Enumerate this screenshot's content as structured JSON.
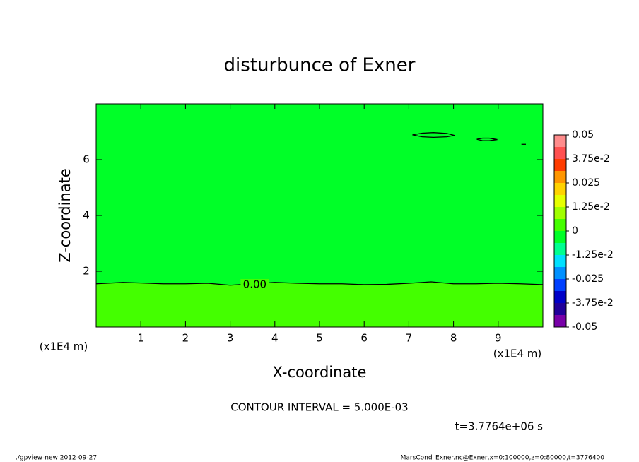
{
  "chart_data": {
    "type": "contour",
    "title": "disturbunce of Exner",
    "xlabel": "X-coordinate",
    "ylabel": "Z-coordinate",
    "xunit": "(x1E4 m)",
    "yunit": "(x1E4 m)",
    "xlim": [
      0,
      10
    ],
    "ylim": [
      0,
      8
    ],
    "xticks": [
      1,
      2,
      3,
      4,
      5,
      6,
      7,
      8,
      9
    ],
    "yticks": [
      2,
      4,
      6
    ],
    "background_color": "#00ff28",
    "contours": [
      {
        "label": "0.00",
        "label_at": [
          3.55,
          1.52
        ],
        "fill_below": "#44ff00",
        "x": [
          0,
          0.6,
          1,
          1.5,
          2,
          2.5,
          3,
          3.5,
          4,
          4.5,
          5,
          5.5,
          6,
          6.5,
          7,
          7.5,
          8,
          8.5,
          9,
          9.5,
          10
        ],
        "z": [
          1.55,
          1.6,
          1.58,
          1.55,
          1.55,
          1.57,
          1.5,
          1.55,
          1.6,
          1.57,
          1.55,
          1.55,
          1.52,
          1.53,
          1.57,
          1.62,
          1.55,
          1.55,
          1.57,
          1.55,
          1.52
        ]
      },
      {
        "x": [
          7.08,
          7.3,
          7.55,
          7.85,
          8.02,
          7.85,
          7.55,
          7.3,
          7.08
        ],
        "z": [
          6.89,
          6.95,
          6.97,
          6.94,
          6.87,
          6.82,
          6.8,
          6.82,
          6.89
        ]
      },
      {
        "x": [
          8.52,
          8.65,
          8.8,
          8.98,
          8.8,
          8.65,
          8.52
        ],
        "z": [
          6.73,
          6.77,
          6.77,
          6.72,
          6.68,
          6.68,
          6.73
        ]
      },
      {
        "x": [
          9.52,
          9.62
        ],
        "z": [
          6.55,
          6.55
        ]
      }
    ],
    "colorbar": {
      "lim": [
        -0.05,
        0.05
      ],
      "ticks": [
        -0.05,
        {
          "value": -0.0375,
          "label": "-3.75e-2"
        },
        -0.025,
        {
          "value": -0.0125,
          "label": "-1.25e-2"
        },
        0,
        {
          "value": 0.0125,
          "label": "1.25e-2"
        },
        0.025,
        {
          "value": 0.0375,
          "label": "3.75e-2"
        },
        0.05
      ],
      "colors": [
        "#7800a8",
        "#20009a",
        "#0000c8",
        "#0040ff",
        "#0090ff",
        "#00e0ff",
        "#00ff90",
        "#00ff28",
        "#44ff00",
        "#a0ff00",
        "#e6ff00",
        "#ffd200",
        "#ff9600",
        "#ff3c00",
        "#ff5050",
        "#ff8c8c"
      ]
    },
    "annotations": [
      "CONTOUR INTERVAL = 5.000E-03",
      "t=3.7764e+06 s",
      "./gpview-new  2012-09-27",
      "MarsCond_Exner.nc@Exner,x=0:100000,z=0:80000,t=3776400"
    ]
  }
}
